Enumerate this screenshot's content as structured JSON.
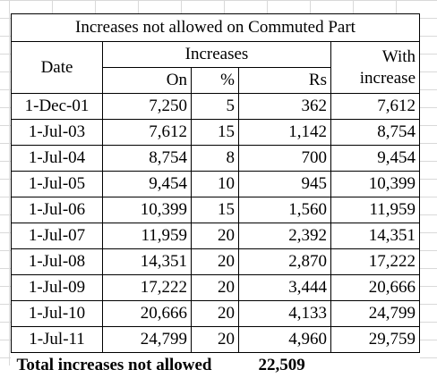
{
  "table": {
    "title": "Increases not allowed on Commuted Part",
    "headers": {
      "date": "Date",
      "increases": "Increases",
      "with_line1": "With",
      "with_line2": "increase",
      "on": "On",
      "pct": "%",
      "rs": "Rs"
    },
    "rows": [
      {
        "date": "1-Dec-01",
        "on": "7,250",
        "pct": "5",
        "rs": "362",
        "with": "7,612"
      },
      {
        "date": "1-Jul-03",
        "on": "7,612",
        "pct": "15",
        "rs": "1,142",
        "with": "8,754"
      },
      {
        "date": "1-Jul-04",
        "on": "8,754",
        "pct": "8",
        "rs": "700",
        "with": "9,454"
      },
      {
        "date": "1-Jul-05",
        "on": "9,454",
        "pct": "10",
        "rs": "945",
        "with": "10,399"
      },
      {
        "date": "1-Jul-06",
        "on": "10,399",
        "pct": "15",
        "rs": "1,560",
        "with": "11,959"
      },
      {
        "date": "1-Jul-07",
        "on": "11,959",
        "pct": "20",
        "rs": "2,392",
        "with": "14,351"
      },
      {
        "date": "1-Jul-08",
        "on": "14,351",
        "pct": "20",
        "rs": "2,870",
        "with": "17,222"
      },
      {
        "date": "1-Jul-09",
        "on": "17,222",
        "pct": "20",
        "rs": "3,444",
        "with": "20,666"
      },
      {
        "date": "1-Jul-10",
        "on": "20,666",
        "pct": "20",
        "rs": "4,133",
        "with": "24,799"
      },
      {
        "date": "1-Jul-11",
        "on": "24,799",
        "pct": "20",
        "rs": "4,960",
        "with": "29,759"
      }
    ],
    "total": {
      "label": "Total increases not allowed",
      "value": "22,509"
    }
  }
}
